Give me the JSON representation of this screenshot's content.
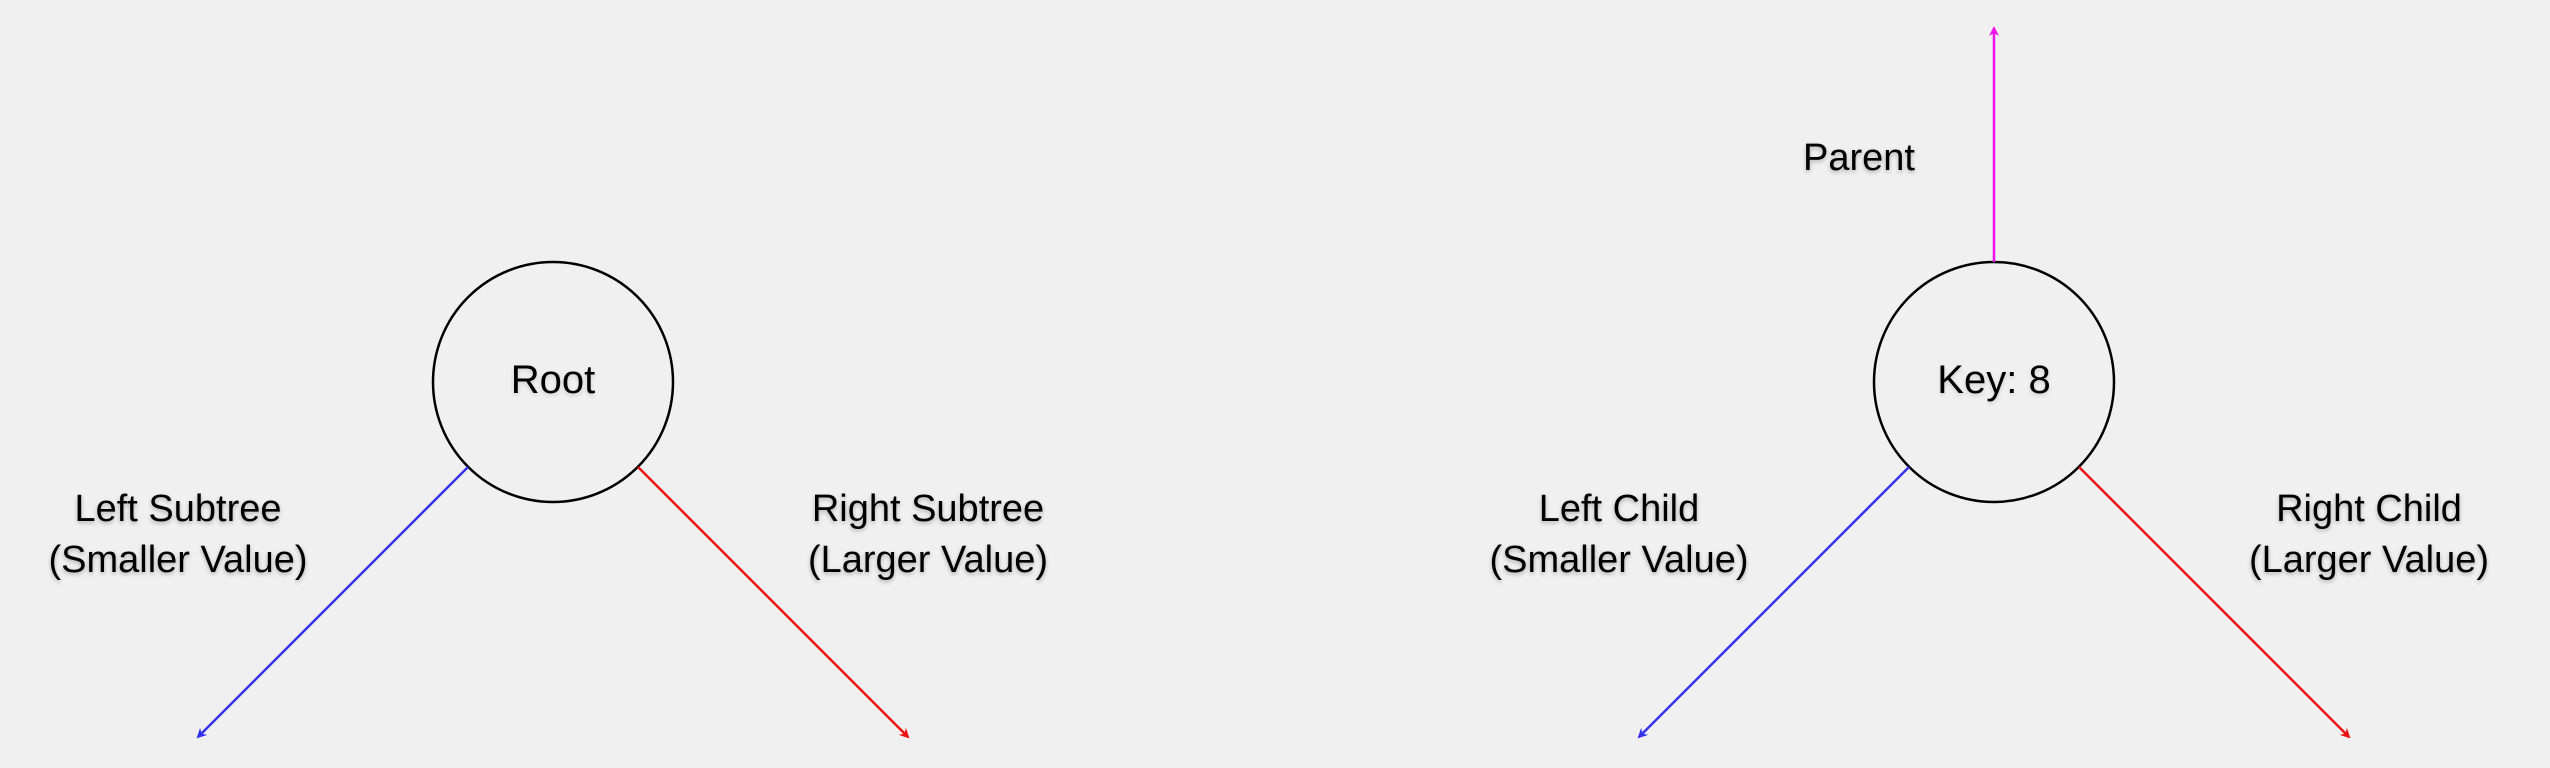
{
  "colors": {
    "background": "#f0f0f0",
    "node_stroke": "#000000",
    "left_edge": "#3333ee",
    "right_edge": "#ee1111",
    "parent_edge": "#ee11ee"
  },
  "left_diagram": {
    "node_label": "Root",
    "left_label": [
      "Left Subtree",
      "(Smaller Value)"
    ],
    "right_label": [
      "Right Subtree",
      "(Larger Value)"
    ]
  },
  "right_diagram": {
    "node_label": "Key: 8",
    "parent_label": "Parent",
    "left_label": [
      "Left Child",
      "(Smaller Value)"
    ],
    "right_label": [
      "Right Child",
      "(Larger Value)"
    ]
  }
}
